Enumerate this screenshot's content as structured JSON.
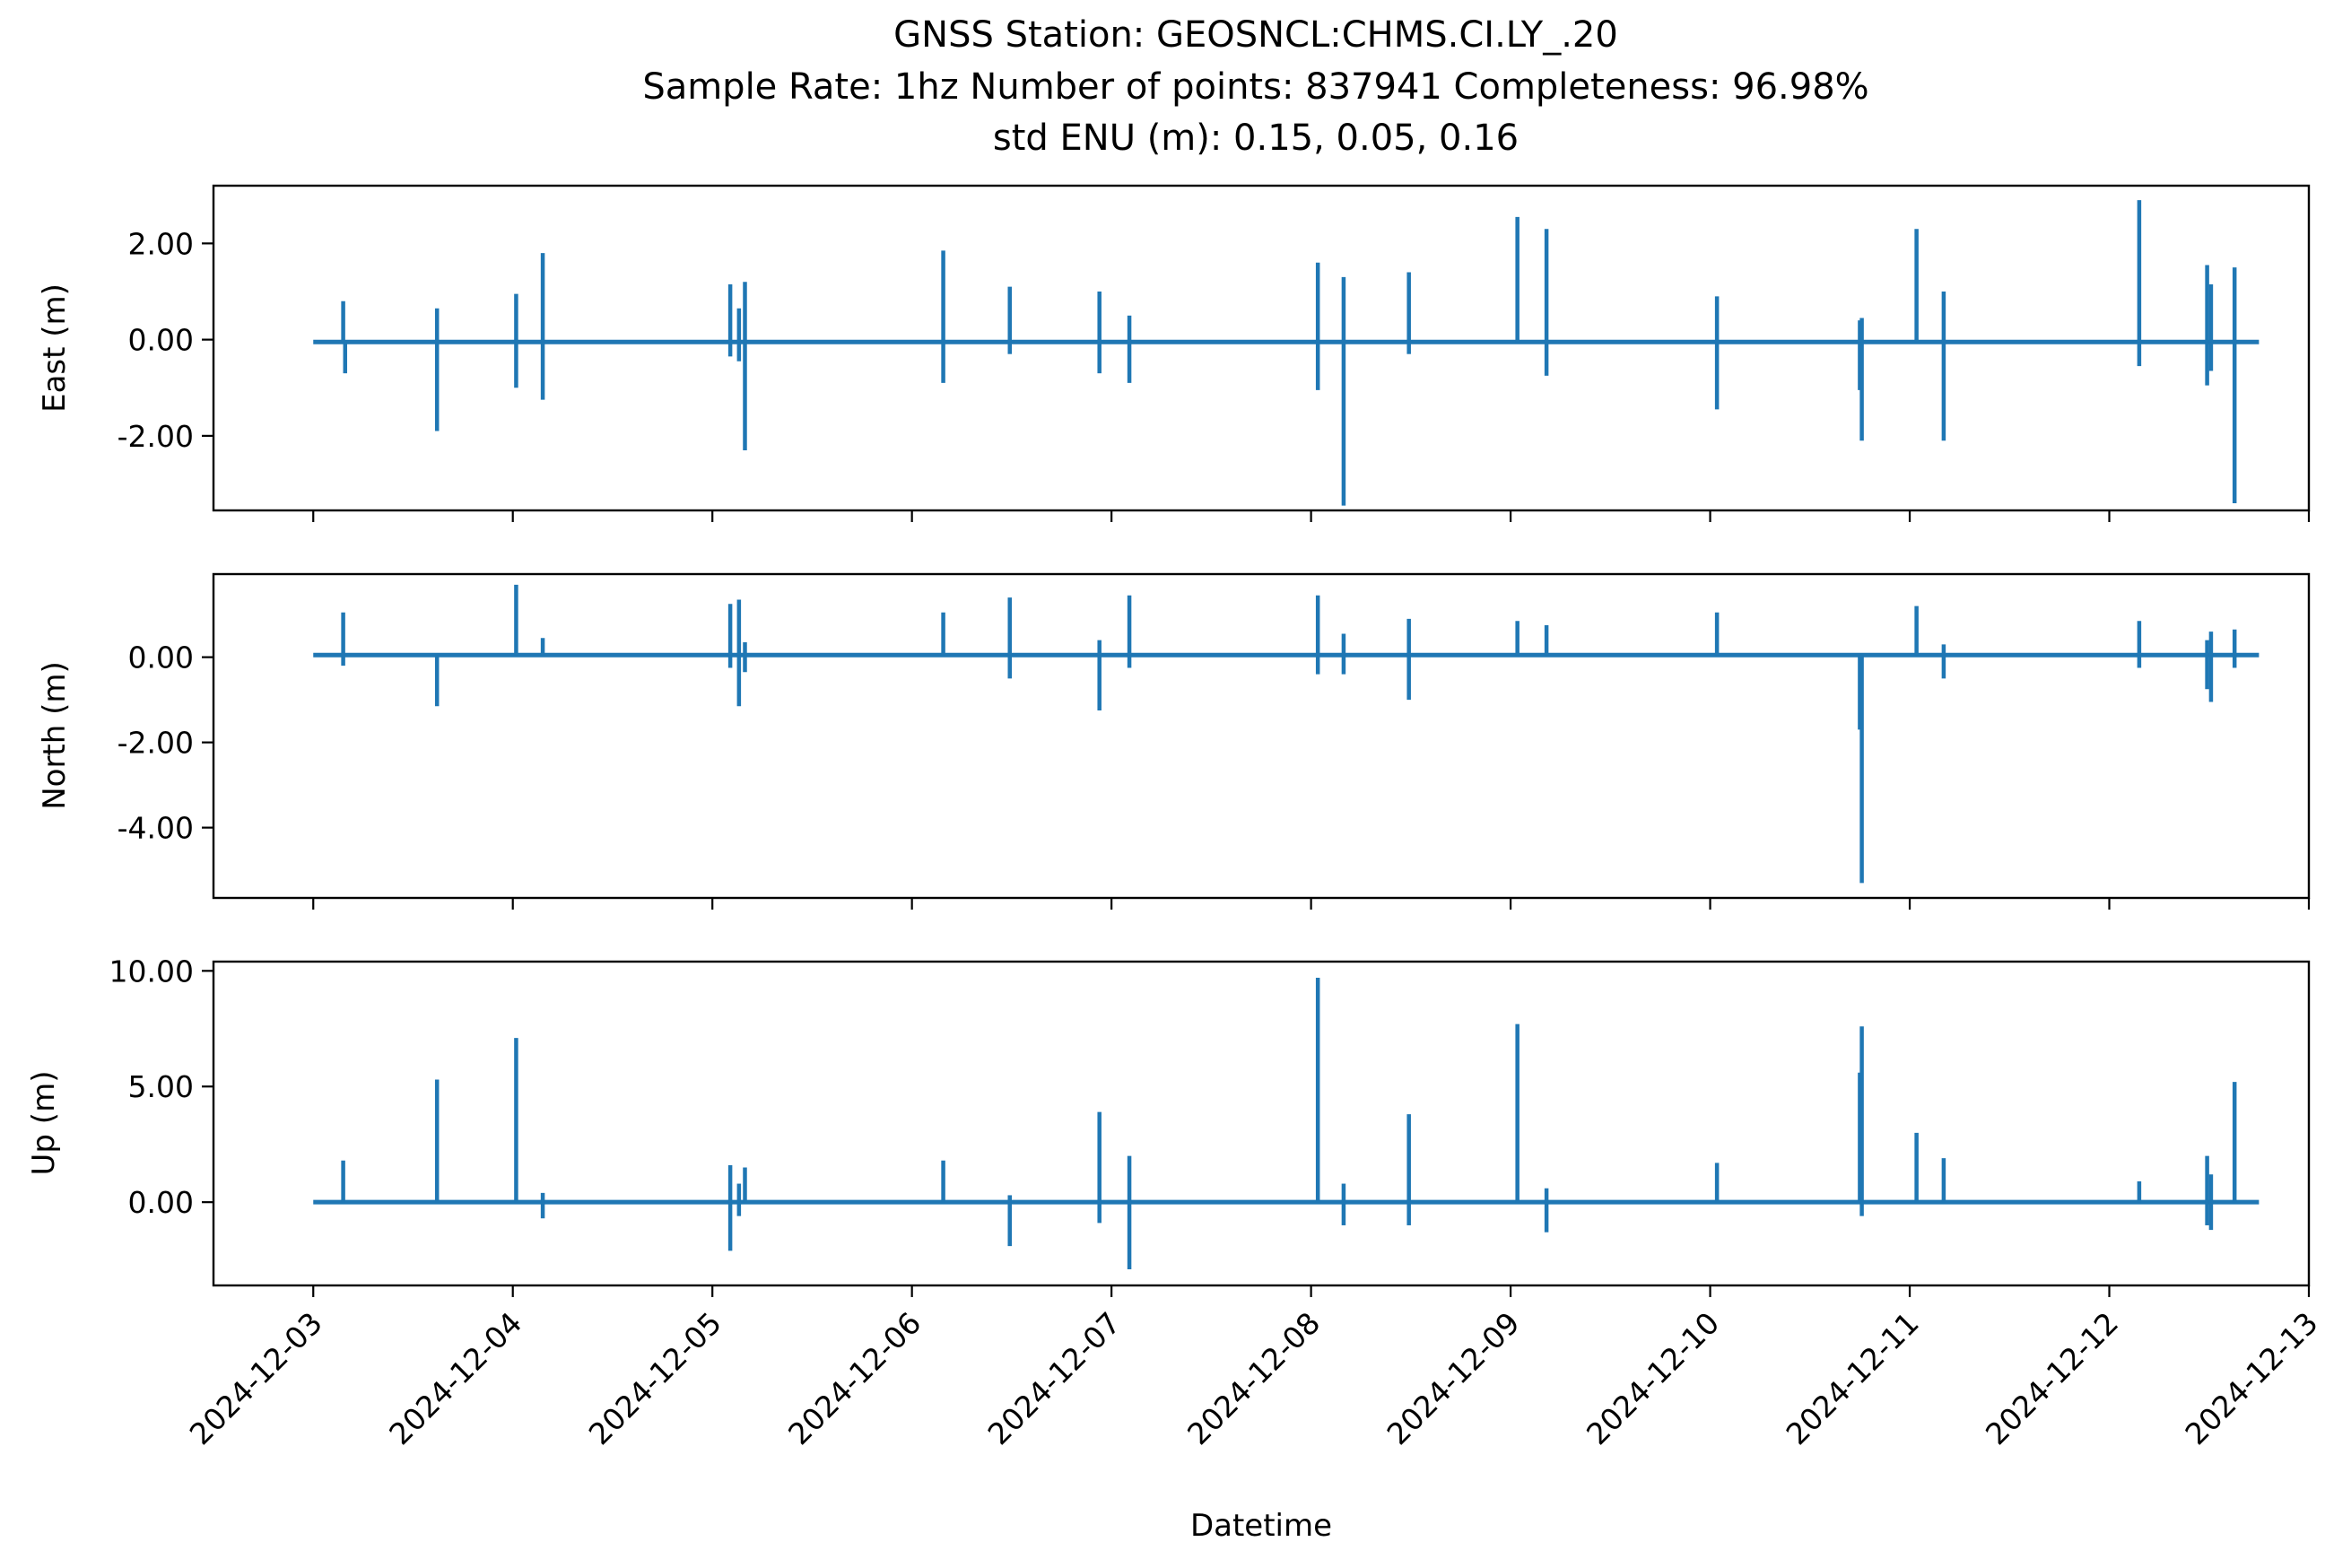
{
  "title_lines": [
    "GNSS Station: GEOSNCL:CHMS.CI.LY_.20",
    "Sample Rate: 1hz   Number of points: 837941    Completeness:  96.98%",
    "std ENU (m):  0.15, 0.05, 0.16"
  ],
  "xlabel": "Datetime",
  "colors": {
    "series": "#1f77b4"
  },
  "chart_data": [
    {
      "type": "line",
      "panel": "east",
      "ylabel": "East (m)",
      "ylim": [
        -3.55,
        3.2
      ],
      "yticks": [
        2.0,
        0.0,
        -2.0
      ],
      "ytick_labels": [
        "2.00",
        "0.00",
        "-2.00"
      ],
      "xlim": [
        "2024-12-02 12:00",
        "2024-12-13 00:00"
      ],
      "xticks": [
        "2024-12-03",
        "2024-12-04",
        "2024-12-05",
        "2024-12-06",
        "2024-12-07",
        "2024-12-08",
        "2024-12-09",
        "2024-12-10",
        "2024-12-11",
        "2024-12-12",
        "2024-12-13"
      ],
      "baseline": -0.05,
      "series": [
        {
          "x": [
            "2024-12-03 00:00",
            "2024-12-03 03:36",
            "2024-12-03 14:53",
            "2024-12-04 00:24",
            "2024-12-04 03:36",
            "2024-12-05 02:09",
            "2024-12-05 03:12",
            "2024-12-05 03:55",
            "2024-12-06 03:46",
            "2024-12-06 11:46",
            "2024-12-06 22:33",
            "2024-12-07 02:09",
            "2024-12-08 00:49",
            "2024-12-08 03:55",
            "2024-12-08 11:46",
            "2024-12-09 00:49",
            "2024-12-09 04:19",
            "2024-12-10 00:49",
            "2024-12-10 18:00",
            "2024-12-10 18:14",
            "2024-12-11 00:49",
            "2024-12-11 04:05",
            "2024-12-12 03:36",
            "2024-12-12 11:46",
            "2024-12-12 12:14",
            "2024-12-12 15:04",
            "2024-12-12 18:00"
          ],
          "y": [
            -0.05,
            0.8,
            0.65,
            0.95,
            1.8,
            1.15,
            0.65,
            1.2,
            1.85,
            1.1,
            1.0,
            0.5,
            1.6,
            1.3,
            1.4,
            2.55,
            2.3,
            0.9,
            0.4,
            0.45,
            2.3,
            1.0,
            2.9,
            1.55,
            1.15,
            1.5,
            -0.05
          ]
        },
        {
          "x": [
            "2024-12-03 03:50",
            "2024-12-03 14:53",
            "2024-12-04 00:24",
            "2024-12-04 03:36",
            "2024-12-05 02:09",
            "2024-12-05 03:12",
            "2024-12-05 03:55",
            "2024-12-06 03:46",
            "2024-12-06 11:46",
            "2024-12-06 22:33",
            "2024-12-07 02:09",
            "2024-12-08 00:49",
            "2024-12-08 03:55",
            "2024-12-08 11:46",
            "2024-12-09 04:19",
            "2024-12-10 00:49",
            "2024-12-10 18:00",
            "2024-12-10 18:14",
            "2024-12-11 04:05",
            "2024-12-12 03:36",
            "2024-12-12 11:46",
            "2024-12-12 12:14",
            "2024-12-12 15:04"
          ],
          "y": [
            -0.7,
            -1.9,
            -1.0,
            -1.25,
            -0.35,
            -0.45,
            -2.3,
            -0.9,
            -0.3,
            -0.7,
            -0.9,
            -1.05,
            -3.45,
            -0.3,
            -0.75,
            -1.45,
            -1.05,
            -2.1,
            -2.1,
            -0.55,
            -0.95,
            -0.65,
            -3.4
          ]
        }
      ]
    },
    {
      "type": "line",
      "panel": "north",
      "ylabel": "North (m)",
      "ylim": [
        -5.65,
        1.95
      ],
      "yticks": [
        0.0,
        -2.0,
        -4.0
      ],
      "ytick_labels": [
        "0.00",
        "-2.00",
        "-4.00"
      ],
      "xlim": [
        "2024-12-02 12:00",
        "2024-12-13 00:00"
      ],
      "xticks": [
        "2024-12-03",
        "2024-12-04",
        "2024-12-05",
        "2024-12-06",
        "2024-12-07",
        "2024-12-08",
        "2024-12-09",
        "2024-12-10",
        "2024-12-11",
        "2024-12-12",
        "2024-12-13"
      ],
      "baseline": 0.05,
      "series": [
        {
          "x": [
            "2024-12-03 03:36",
            "2024-12-04 00:24",
            "2024-12-04 03:36",
            "2024-12-05 02:09",
            "2024-12-05 03:12",
            "2024-12-05 03:55",
            "2024-12-06 03:46",
            "2024-12-06 11:46",
            "2024-12-06 22:33",
            "2024-12-07 02:09",
            "2024-12-08 00:49",
            "2024-12-08 03:55",
            "2024-12-08 11:46",
            "2024-12-09 00:49",
            "2024-12-09 04:19",
            "2024-12-10 00:49",
            "2024-12-11 00:49",
            "2024-12-11 04:05",
            "2024-12-12 03:36",
            "2024-12-12 11:46",
            "2024-12-12 12:14",
            "2024-12-12 15:04"
          ],
          "y": [
            1.05,
            1.7,
            0.45,
            1.25,
            1.35,
            0.35,
            1.05,
            1.4,
            0.4,
            1.45,
            1.45,
            0.55,
            0.9,
            0.85,
            0.75,
            1.05,
            1.2,
            0.3,
            0.85,
            0.4,
            0.6,
            0.65
          ]
        },
        {
          "x": [
            "2024-12-03 03:36",
            "2024-12-03 14:53",
            "2024-12-05 02:09",
            "2024-12-05 03:12",
            "2024-12-05 03:55",
            "2024-12-06 11:46",
            "2024-12-06 22:33",
            "2024-12-07 02:09",
            "2024-12-08 00:49",
            "2024-12-08 03:55",
            "2024-12-08 11:46",
            "2024-12-10 18:00",
            "2024-12-10 18:14",
            "2024-12-11 04:05",
            "2024-12-12 03:36",
            "2024-12-12 11:46",
            "2024-12-12 12:14",
            "2024-12-12 15:04"
          ],
          "y": [
            -0.2,
            -1.15,
            -0.25,
            -1.15,
            -0.35,
            -0.5,
            -1.25,
            -0.25,
            -0.4,
            -0.4,
            -1.0,
            -1.7,
            -5.3,
            -0.5,
            -0.25,
            -0.75,
            -1.05,
            -0.25
          ]
        }
      ]
    },
    {
      "type": "line",
      "panel": "up",
      "ylabel": "Up (m)",
      "ylim": [
        -3.6,
        10.4
      ],
      "yticks": [
        10.0,
        5.0,
        0.0
      ],
      "ytick_labels": [
        "10.00",
        "5.00",
        "0.00"
      ],
      "xlim": [
        "2024-12-02 12:00",
        "2024-12-13 00:00"
      ],
      "xticks": [
        "2024-12-03",
        "2024-12-04",
        "2024-12-05",
        "2024-12-06",
        "2024-12-07",
        "2024-12-08",
        "2024-12-09",
        "2024-12-10",
        "2024-12-11",
        "2024-12-12",
        "2024-12-13"
      ],
      "baseline": 0.0,
      "series": [
        {
          "x": [
            "2024-12-03 03:36",
            "2024-12-03 14:53",
            "2024-12-04 00:24",
            "2024-12-04 03:36",
            "2024-12-05 02:09",
            "2024-12-05 03:12",
            "2024-12-05 03:55",
            "2024-12-06 03:46",
            "2024-12-06 11:46",
            "2024-12-06 22:33",
            "2024-12-07 02:09",
            "2024-12-08 00:49",
            "2024-12-08 03:55",
            "2024-12-08 11:46",
            "2024-12-09 00:49",
            "2024-12-09 04:19",
            "2024-12-10 00:49",
            "2024-12-10 18:00",
            "2024-12-10 18:14",
            "2024-12-11 00:49",
            "2024-12-11 04:05",
            "2024-12-12 03:36",
            "2024-12-12 11:46",
            "2024-12-12 12:14",
            "2024-12-12 15:04"
          ],
          "y": [
            1.8,
            5.3,
            7.1,
            0.4,
            1.6,
            0.8,
            1.5,
            1.8,
            0.3,
            3.9,
            2.0,
            9.7,
            0.8,
            3.8,
            7.7,
            0.6,
            1.7,
            5.6,
            7.6,
            3.0,
            1.9,
            0.9,
            2.0,
            1.2,
            5.2
          ]
        },
        {
          "x": [
            "2024-12-04 03:36",
            "2024-12-05 02:09",
            "2024-12-05 03:12",
            "2024-12-06 11:46",
            "2024-12-06 22:33",
            "2024-12-07 02:09",
            "2024-12-08 03:55",
            "2024-12-08 11:46",
            "2024-12-09 04:19",
            "2024-12-10 18:14",
            "2024-12-12 11:46",
            "2024-12-12 12:14"
          ],
          "y": [
            -0.7,
            -2.1,
            -0.6,
            -1.9,
            -0.9,
            -2.9,
            -1.0,
            -1.0,
            -1.3,
            -0.6,
            -1.0,
            -1.2
          ]
        }
      ]
    }
  ]
}
